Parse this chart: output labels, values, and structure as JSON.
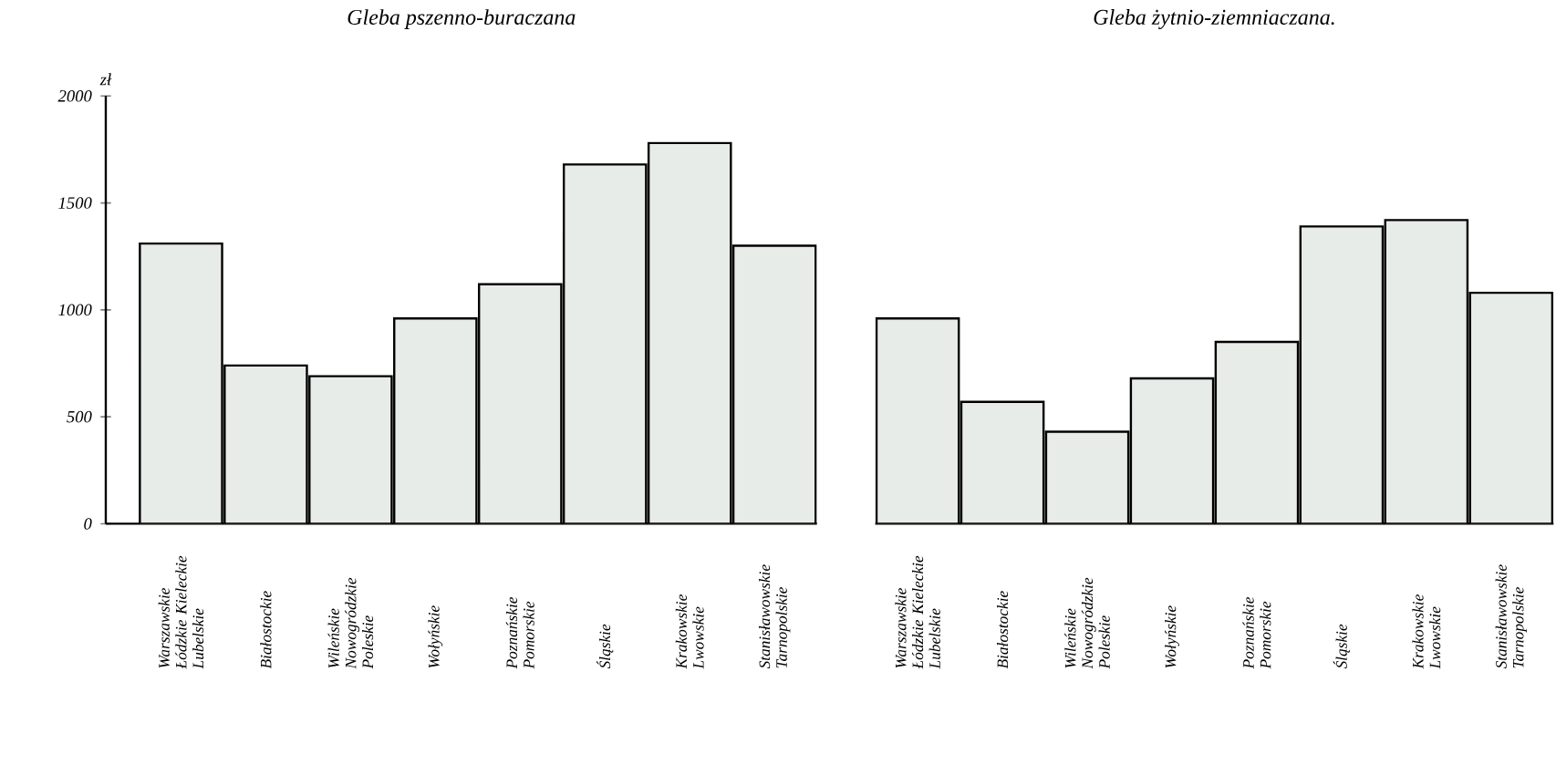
{
  "chart_data": [
    {
      "type": "bar",
      "title": "Gleba pszenno-buraczana",
      "ylabel": "zł",
      "categories": [
        "Warszawskie Łódzkie Kieleckie Lubelskie",
        "Białostockie",
        "Wileńskie Nowogródzkie Poleskie",
        "Wołyńskie",
        "Poznańskie Pomorskie",
        "Śląskie",
        "Krakowskie Lwowskie",
        "Stanisławowskie Tarnopolskie"
      ],
      "values": [
        1310,
        740,
        690,
        960,
        1120,
        1680,
        1780,
        1300
      ],
      "color": "#e8ece9",
      "ylim": [
        0,
        2000
      ],
      "yticks": [
        0,
        500,
        1000,
        1500,
        2000
      ],
      "grid": false
    },
    {
      "type": "bar",
      "title": "Gleba żytnio-ziemniaczana.",
      "categories": [
        "Warszawskie Łódzkie Kieleckie Lubelskie",
        "Białostockie",
        "Wileńskie Nowogródzkie Poleskie",
        "Wołyńskie",
        "Poznańskie Pomorskie",
        "Śląskie",
        "Krakowskie Lwowskie",
        "Stanisławowskie Tarnopolskie"
      ],
      "values": [
        960,
        570,
        430,
        680,
        850,
        1390,
        1420,
        1080
      ],
      "color": "#e8ece9",
      "ylim": [
        0,
        2000
      ],
      "tick_labels": "x",
      "grid": false
    }
  ]
}
